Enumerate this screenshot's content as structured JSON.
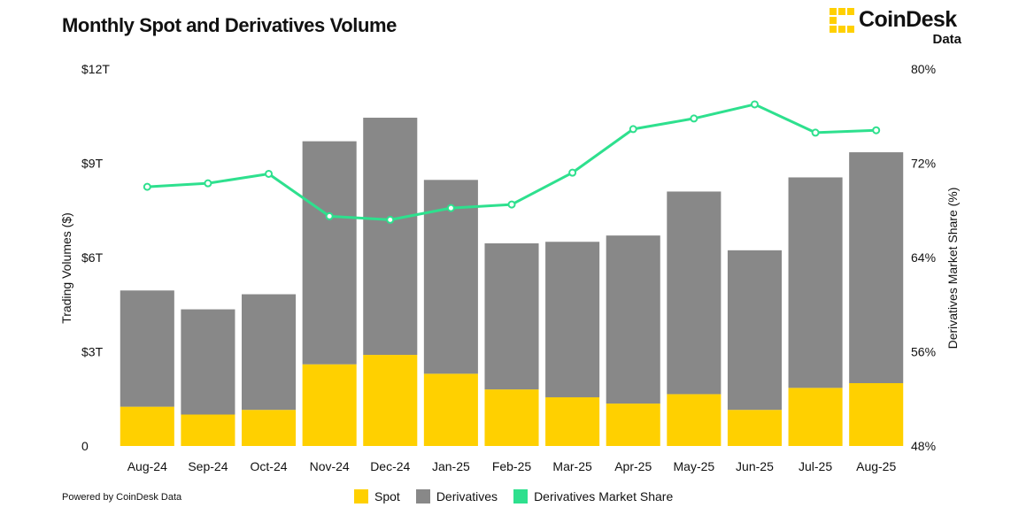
{
  "header": {
    "title": "Monthly Spot and Derivatives Volume",
    "logo_word": "CoinDesk",
    "logo_sub": "Data"
  },
  "footer": {
    "powered_by": "Powered by CoinDesk Data"
  },
  "colors": {
    "spot": "#FFD000",
    "derivatives": "#888888",
    "share": "#2EE08E",
    "logo_yellow": "#FFD000"
  },
  "icons": {
    "logo": "coindesk-logo-icon"
  },
  "chart_data": {
    "type": "bar",
    "stacked": true,
    "title": "Monthly Spot and Derivatives Volume",
    "categories": [
      "Aug-24",
      "Sep-24",
      "Oct-24",
      "Nov-24",
      "Dec-24",
      "Jan-25",
      "Feb-25",
      "Mar-25",
      "Apr-25",
      "May-25",
      "Jun-25",
      "Jul-25",
      "Aug-25"
    ],
    "series": [
      {
        "name": "Spot",
        "axis": "left",
        "values": [
          1.25,
          1.0,
          1.15,
          2.6,
          2.9,
          2.3,
          1.8,
          1.55,
          1.35,
          1.65,
          1.15,
          1.85,
          2.0
        ]
      },
      {
        "name": "Derivatives",
        "axis": "left",
        "values": [
          3.7,
          3.35,
          3.68,
          7.1,
          7.55,
          6.17,
          4.65,
          4.95,
          5.35,
          6.45,
          5.08,
          6.7,
          7.35
        ]
      },
      {
        "name": "Derivatives Market Share",
        "type": "line",
        "axis": "right",
        "values": [
          70.0,
          70.3,
          71.1,
          67.5,
          67.2,
          68.2,
          68.5,
          71.2,
          74.9,
          75.8,
          77.0,
          74.6,
          74.8
        ]
      }
    ],
    "ylabel": "Trading Volumes ($)",
    "ylabel_right": "Derivatives Market Share (%)",
    "ylim": [
      0,
      12
    ],
    "ylim_right": [
      48,
      80
    ],
    "y_ticks": [
      "0",
      "$3T",
      "$6T",
      "$9T",
      "$12T"
    ],
    "y_ticks_right": [
      "48%",
      "56%",
      "64%",
      "72%",
      "80%"
    ],
    "grid": false,
    "legend": "bottom"
  }
}
